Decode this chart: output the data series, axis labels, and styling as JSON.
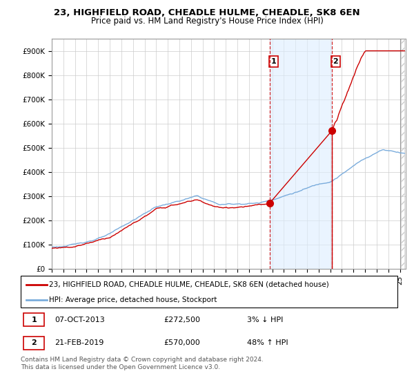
{
  "title": "23, HIGHFIELD ROAD, CHEADLE HULME, CHEADLE, SK8 6EN",
  "subtitle": "Price paid vs. HM Land Registry's House Price Index (HPI)",
  "ylabel_ticks": [
    "£0",
    "£100K",
    "£200K",
    "£300K",
    "£400K",
    "£500K",
    "£600K",
    "£700K",
    "£800K",
    "£900K"
  ],
  "ytick_values": [
    0,
    100000,
    200000,
    300000,
    400000,
    500000,
    600000,
    700000,
    800000,
    900000
  ],
  "ylim": [
    0,
    950000
  ],
  "xlim_start": 1995.0,
  "xlim_end": 2025.5,
  "sale1_x": 2013.77,
  "sale1_y": 272500,
  "sale2_x": 2019.13,
  "sale2_y": 570000,
  "sale1_label": "1",
  "sale2_label": "2",
  "legend_line1": "23, HIGHFIELD ROAD, CHEADLE HULME, CHEADLE, SK8 6EN (detached house)",
  "legend_line2": "HPI: Average price, detached house, Stockport",
  "table_row1": [
    "1",
    "07-OCT-2013",
    "£272,500",
    "3% ↓ HPI"
  ],
  "table_row2": [
    "2",
    "21-FEB-2019",
    "£570,000",
    "48% ↑ HPI"
  ],
  "footer": "Contains HM Land Registry data © Crown copyright and database right 2024.\nThis data is licensed under the Open Government Licence v3.0.",
  "line_color_red": "#cc0000",
  "line_color_blue": "#7aacdc",
  "shade_color": "#ddeeff",
  "vline_color": "#cc0000",
  "hatch_color": "#bbbbbb",
  "title_fontsize": 9.5,
  "subtitle_fontsize": 8.5,
  "tick_fontsize": 7.5,
  "legend_fontsize": 7.5,
  "footer_fontsize": 6.5
}
